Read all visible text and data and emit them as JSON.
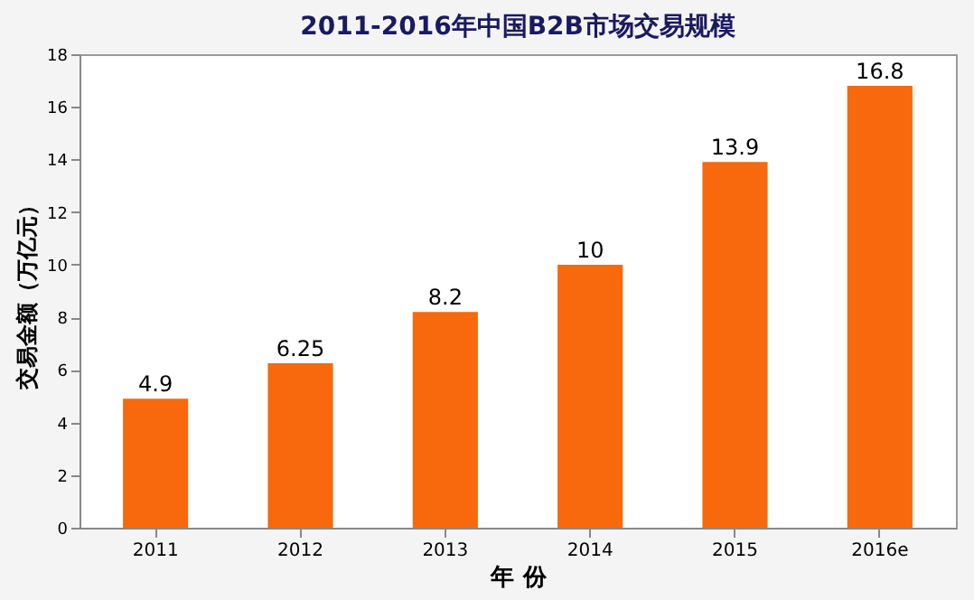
{
  "chart_data": {
    "type": "bar",
    "title": "2011-2016年中国B2B市场交易规模",
    "xlabel": "年 份",
    "ylabel": "交易金额（万亿元）",
    "categories": [
      "2011",
      "2012",
      "2013",
      "2014",
      "2015",
      "2016e"
    ],
    "values": [
      4.9,
      6.25,
      8.2,
      10,
      13.9,
      16.8
    ],
    "color": "#f7690c",
    "ylim": [
      0,
      18
    ],
    "yticks": [
      0,
      2,
      4,
      6,
      8,
      10,
      12,
      14,
      16,
      18
    ],
    "grid": false,
    "data_labels": true
  }
}
